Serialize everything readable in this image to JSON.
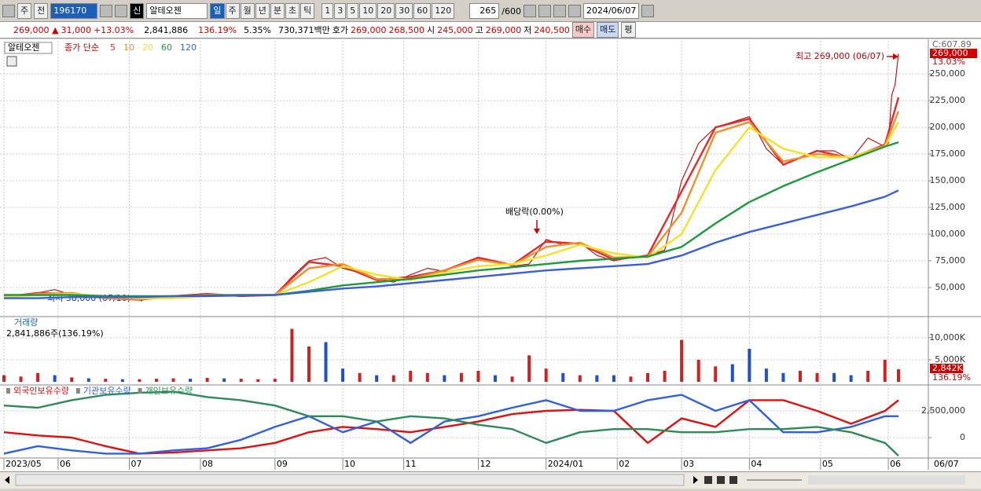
{
  "toolbar": {
    "market": "주",
    "prev": "전",
    "code": "196170",
    "badge": "신",
    "name": "알테오젠",
    "periods": [
      "일",
      "주",
      "월",
      "년",
      "분",
      "초",
      "틱"
    ],
    "intervals": [
      "1",
      "3",
      "5",
      "10",
      "20",
      "30",
      "60",
      "120"
    ],
    "count": "265",
    "max": "/600",
    "date": "2024/06/07"
  },
  "quote": {
    "price": "269,000 ▲",
    "change": "31,000",
    "rate": "+13.03%",
    "volume": "2,841,886",
    "volume_rate": "136.19%",
    "turnover": "5.35%",
    "amount": "730,371백만",
    "ask_label": "호가",
    "ask": "269,000",
    "bid": "268,500",
    "open_label": "시",
    "open": "245,000",
    "high_label": "고",
    "high": "269,000",
    "low_label": "저",
    "low": "240,500",
    "buy": "매수",
    "sell": "매도",
    "eval": "평"
  },
  "chart_data": [
    {
      "type": "line",
      "title": "알테오젠",
      "legend_title": "종가 단순",
      "price_tag": "269,000",
      "rate_tag": "13.03%",
      "c_label": "C:607.89",
      "high_note": "최고 269,000 (06/07)",
      "low_note": "최저 38,000 (07/10)",
      "dividend_note": "배당락(0.00%)",
      "xlim": [
        0,
        264
      ],
      "ylim": [
        23500,
        281000
      ],
      "grid": true,
      "yticks": [
        {
          "value": 50000,
          "label": "50,000"
        },
        {
          "value": 75000,
          "label": "75,000"
        },
        {
          "value": 100000,
          "label": "100,000"
        },
        {
          "value": 125000,
          "label": "125,000"
        },
        {
          "value": 150000,
          "label": "150,000"
        },
        {
          "value": 175000,
          "label": "175,000"
        },
        {
          "value": 200000,
          "label": "200,000"
        },
        {
          "value": 225000,
          "label": "225,000"
        },
        {
          "value": 250000,
          "label": "250,000"
        }
      ],
      "series": [
        {
          "color": "#c01818",
          "x": [
            0,
            5,
            10,
            15,
            20,
            25,
            30,
            35,
            40,
            45,
            50,
            55,
            60,
            65,
            70,
            75,
            80,
            85,
            90,
            95,
            100,
            105,
            110,
            115,
            120,
            125,
            130,
            135,
            140,
            145,
            150,
            155,
            160,
            165,
            170,
            175,
            180,
            185,
            190,
            195,
            200,
            205,
            210,
            215,
            220,
            225,
            230,
            235,
            240,
            245,
            250,
            255,
            260,
            261,
            262,
            263,
            264
          ],
          "values": [
            40000,
            42000,
            45000,
            48000,
            43000,
            41000,
            40000,
            39000,
            38500,
            40000,
            42000,
            43000,
            44000,
            43000,
            42000,
            42500,
            43000,
            60000,
            75000,
            78000,
            68000,
            64000,
            58000,
            55000,
            62000,
            68000,
            65000,
            72000,
            78000,
            75000,
            70000,
            72000,
            95000,
            90000,
            92000,
            80000,
            75000,
            78000,
            80000,
            85000,
            150000,
            185000,
            200000,
            205000,
            210000,
            180000,
            165000,
            172000,
            178000,
            178000,
            170000,
            190000,
            182000,
            185000,
            230000,
            240000,
            269000
          ]
        },
        {
          "name": "5",
          "color": "#e8282a",
          "x": [
            0,
            10,
            20,
            30,
            40,
            50,
            60,
            70,
            80,
            90,
            100,
            110,
            120,
            130,
            140,
            150,
            160,
            170,
            180,
            190,
            200,
            210,
            220,
            230,
            240,
            250,
            260,
            264
          ],
          "values": [
            41000,
            45000,
            44000,
            40000,
            38500,
            42000,
            44000,
            42000,
            43000,
            74000,
            70000,
            57000,
            60000,
            66000,
            78000,
            71000,
            93000,
            91000,
            76000,
            80000,
            140000,
            200000,
            208000,
            165000,
            178000,
            171000,
            184000,
            228000
          ]
        },
        {
          "name": "10",
          "color": "#f0902a",
          "x": [
            0,
            10,
            20,
            30,
            40,
            50,
            60,
            70,
            80,
            90,
            100,
            110,
            120,
            130,
            140,
            150,
            160,
            170,
            180,
            190,
            200,
            210,
            220,
            230,
            240,
            250,
            260,
            264
          ],
          "values": [
            41000,
            44000,
            45000,
            40000,
            39000,
            41000,
            43000,
            43000,
            43000,
            68000,
            72000,
            58000,
            58000,
            66000,
            76000,
            71000,
            88000,
            92000,
            78000,
            79000,
            120000,
            195000,
            205000,
            168000,
            175000,
            172000,
            183000,
            215000
          ]
        },
        {
          "name": "20",
          "color": "#f2e22a",
          "x": [
            0,
            10,
            20,
            30,
            40,
            50,
            60,
            70,
            80,
            90,
            100,
            110,
            120,
            130,
            140,
            150,
            160,
            170,
            180,
            190,
            200,
            210,
            220,
            230,
            240,
            250,
            260,
            264
          ],
          "values": [
            41000,
            43000,
            44000,
            42000,
            40000,
            40000,
            42000,
            43000,
            43000,
            55000,
            70000,
            62000,
            57000,
            64000,
            70000,
            72000,
            80000,
            90000,
            82000,
            78000,
            100000,
            160000,
            200000,
            180000,
            172000,
            172000,
            182000,
            205000
          ]
        },
        {
          "name": "60",
          "color": "#1e9a3c",
          "x": [
            0,
            10,
            20,
            30,
            40,
            50,
            60,
            70,
            80,
            90,
            100,
            110,
            120,
            130,
            140,
            150,
            160,
            170,
            180,
            190,
            200,
            210,
            220,
            230,
            240,
            250,
            260,
            264
          ],
          "values": [
            43000,
            43000,
            43000,
            42000,
            42000,
            42000,
            42500,
            43000,
            43000,
            47000,
            52000,
            55000,
            58000,
            62000,
            66000,
            69000,
            72000,
            75000,
            77000,
            79000,
            88000,
            110000,
            130000,
            145000,
            158000,
            170000,
            182000,
            186000
          ]
        },
        {
          "name": "120",
          "color": "#3a5fd8",
          "x": [
            0,
            10,
            20,
            30,
            40,
            50,
            60,
            70,
            80,
            90,
            100,
            110,
            120,
            130,
            140,
            150,
            160,
            170,
            180,
            190,
            200,
            210,
            220,
            230,
            240,
            250,
            260,
            264
          ],
          "values": [
            40000,
            40000,
            41000,
            41000,
            41000,
            42000,
            42000,
            42500,
            43000,
            46000,
            49000,
            51000,
            54000,
            57000,
            60000,
            63000,
            66000,
            68000,
            70000,
            72000,
            80000,
            92000,
            102000,
            110000,
            118000,
            126000,
            135000,
            141000
          ]
        }
      ]
    },
    {
      "type": "bar",
      "title": "거래량",
      "subtitle": "2,841,886주(136.19%)",
      "tag": "2,842K",
      "tag_rate": "136.19%",
      "xlim": [
        0,
        264
      ],
      "ylim": [
        -700,
        14600
      ],
      "grid": true,
      "yticks": [
        {
          "value": 5000,
          "label": "5,000K"
        },
        {
          "value": 10000,
          "label": "10,000K"
        }
      ],
      "x": [
        0,
        5,
        10,
        15,
        20,
        25,
        30,
        35,
        40,
        45,
        50,
        55,
        60,
        65,
        70,
        75,
        80,
        85,
        90,
        95,
        100,
        105,
        110,
        115,
        120,
        125,
        130,
        135,
        140,
        145,
        150,
        155,
        160,
        165,
        170,
        175,
        180,
        185,
        190,
        195,
        200,
        205,
        210,
        215,
        220,
        225,
        230,
        235,
        240,
        245,
        250,
        255,
        260,
        264
      ],
      "values": [
        1500,
        1200,
        2000,
        1500,
        1000,
        800,
        700,
        600,
        600,
        700,
        800,
        700,
        900,
        800,
        700,
        600,
        700,
        12000,
        8000,
        9000,
        3000,
        2000,
        1500,
        1500,
        2500,
        2000,
        1500,
        2000,
        2500,
        1500,
        1200,
        6000,
        3000,
        2000,
        1500,
        1500,
        1500,
        1200,
        2000,
        2500,
        9500,
        5000,
        3500,
        4000,
        7500,
        3000,
        2000,
        2500,
        2000,
        2000,
        1500,
        2500,
        5000,
        2842
      ],
      "colors": [
        "#d02020",
        "#d02020",
        "#d02020",
        "#2050d0",
        "#d02020",
        "#2050d0",
        "#d02020",
        "#2050d0",
        "#d02020",
        "#d02020",
        "#d02020",
        "#2050d0",
        "#d02020",
        "#2050d0",
        "#d02020",
        "#d02020",
        "#d02020",
        "#d02020",
        "#d02020",
        "#2050d0",
        "#2050d0",
        "#d02020",
        "#2050d0",
        "#d02020",
        "#d02020",
        "#d02020",
        "#2050d0",
        "#d02020",
        "#d02020",
        "#2050d0",
        "#d02020",
        "#d02020",
        "#d02020",
        "#2050d0",
        "#d02020",
        "#2050d0",
        "#2050d0",
        "#d02020",
        "#d02020",
        "#d02020",
        "#d02020",
        "#d02020",
        "#d02020",
        "#2050d0",
        "#2050d0",
        "#2050d0",
        "#2050d0",
        "#d02020",
        "#d02020",
        "#2050d0",
        "#2050d0",
        "#d02020",
        "#d02020",
        "#d02020"
      ]
    },
    {
      "type": "line",
      "xlim": [
        0,
        264
      ],
      "ylim": [
        -1910000,
        4930000
      ],
      "grid": true,
      "yticks": [
        0,
        {
          "value": 2500000,
          "label": "2,500,000"
        }
      ],
      "xticks": [
        {
          "value": 0,
          "label": "2023/05"
        },
        {
          "value": 16,
          "label": "06"
        },
        {
          "value": 37,
          "label": "07"
        },
        {
          "value": 58,
          "label": "08"
        },
        {
          "value": 80,
          "label": "09"
        },
        {
          "value": 100,
          "label": "10"
        },
        {
          "value": 118,
          "label": "11"
        },
        {
          "value": 140,
          "label": "12"
        },
        {
          "value": 160,
          "label": "2024/01"
        },
        {
          "value": 181,
          "label": "02"
        },
        {
          "value": 200,
          "label": "03"
        },
        {
          "value": 220,
          "label": "04"
        },
        {
          "value": 241,
          "label": "05"
        },
        {
          "value": 261,
          "label": "06"
        }
      ],
      "end_label": "06/07",
      "series": [
        {
          "name": "외국인보유수량",
          "color": "#e01010",
          "x": [
            0,
            10,
            20,
            30,
            40,
            50,
            60,
            70,
            80,
            90,
            100,
            110,
            120,
            130,
            140,
            150,
            160,
            170,
            180,
            190,
            200,
            210,
            220,
            230,
            240,
            250,
            260,
            264
          ],
          "values": [
            500000,
            200000,
            0,
            -800000,
            -1500000,
            -1400000,
            -1200000,
            -1000000,
            -500000,
            500000,
            1000000,
            800000,
            500000,
            1000000,
            1500000,
            2200000,
            2500000,
            2600000,
            2500000,
            -500000,
            1800000,
            1000000,
            3500000,
            3500000,
            2500000,
            1300000,
            2500000,
            3500000
          ]
        },
        {
          "name": "기관보유수량",
          "color": "#3060e0",
          "x": [
            0,
            10,
            20,
            30,
            40,
            50,
            60,
            70,
            80,
            90,
            100,
            110,
            120,
            130,
            140,
            150,
            160,
            170,
            180,
            190,
            200,
            210,
            220,
            230,
            240,
            250,
            260,
            264
          ],
          "values": [
            -1500000,
            -800000,
            -1200000,
            -1500000,
            -1500000,
            -1200000,
            -1000000,
            -200000,
            1000000,
            2000000,
            500000,
            1500000,
            -500000,
            1500000,
            2000000,
            2800000,
            3500000,
            2500000,
            2500000,
            3500000,
            4000000,
            2500000,
            3500000,
            500000,
            500000,
            1000000,
            2000000,
            2000000
          ]
        },
        {
          "name": "개인보유수량",
          "color": "#2e8b57",
          "x": [
            0,
            10,
            20,
            30,
            40,
            50,
            60,
            70,
            80,
            90,
            100,
            110,
            120,
            130,
            140,
            150,
            160,
            170,
            180,
            190,
            200,
            210,
            220,
            230,
            240,
            250,
            260,
            264
          ],
          "values": [
            3000000,
            2800000,
            3500000,
            4000000,
            4200000,
            4300000,
            3800000,
            3500000,
            3000000,
            2000000,
            2000000,
            1500000,
            2000000,
            1800000,
            1200000,
            800000,
            -500000,
            500000,
            800000,
            800000,
            500000,
            500000,
            800000,
            800000,
            1000000,
            500000,
            -500000,
            -1700000
          ]
        }
      ]
    }
  ]
}
